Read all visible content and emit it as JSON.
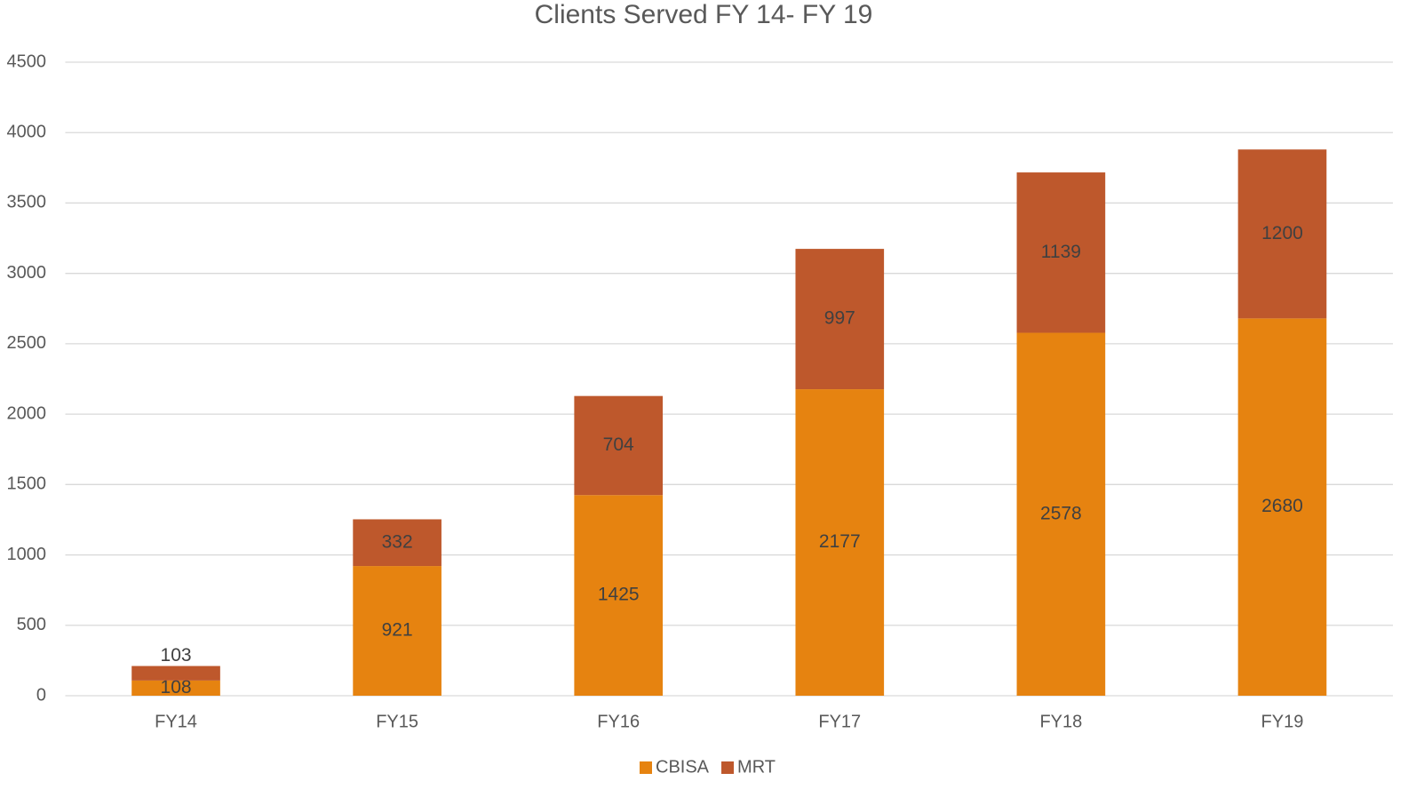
{
  "chart_data": {
    "type": "stacked_bar",
    "title": "Clients Served FY 14- FY 19",
    "categories": [
      "FY14",
      "FY15",
      "FY16",
      "FY17",
      "FY18",
      "FY19"
    ],
    "series": [
      {
        "name": "CBISA",
        "color": "#e68310",
        "values": [
          108,
          921,
          1425,
          2177,
          2578,
          2680
        ]
      },
      {
        "name": "MRT",
        "color": "#be582c",
        "values": [
          103,
          332,
          704,
          997,
          1139,
          1200
        ]
      }
    ],
    "ylim": [
      0,
      4500
    ],
    "yticks": [
      0,
      500,
      1000,
      1500,
      2000,
      2500,
      3000,
      3500,
      4000,
      4500
    ],
    "grid": true,
    "legend": "bottom",
    "data_labels": true
  }
}
